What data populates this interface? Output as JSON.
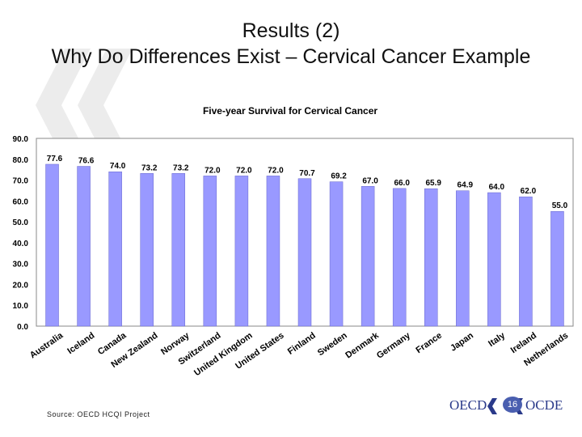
{
  "slide": {
    "title_line1": "Results (2)",
    "title_line2": "Why Do Differences Exist – Cervical Cancer Example",
    "source": "Source: OECD HCQI Project",
    "page_number": "16",
    "logo_left": "OECD",
    "logo_right": "OCDE"
  },
  "colors": {
    "bar_fill": "#9999ff",
    "bar_stroke": "#6666cc",
    "plot_border": "#888888",
    "watermark": "#ececec",
    "logo_text": "#2a3a8a",
    "page_badge": "#4a5fb0"
  },
  "icons": {
    "watermark": "oecd-chevron-watermark-icon",
    "logo_mark": "oecd-logo-mark-icon"
  },
  "chart_data": {
    "type": "bar",
    "title": "Five-year Survival for Cervical Cancer",
    "xlabel": "",
    "ylabel": "",
    "ylim": [
      0,
      90
    ],
    "yticks": [
      "0.0",
      "10.0",
      "20.0",
      "30.0",
      "40.0",
      "50.0",
      "60.0",
      "70.0",
      "80.0",
      "90.0"
    ],
    "grid": false,
    "legend": "none",
    "categories": [
      "Australia",
      "Iceland",
      "Canada",
      "New Zealand",
      "Norway",
      "Switzerland",
      "United Kingdom",
      "United States",
      "Finland",
      "Sweden",
      "Denmark",
      "Germany",
      "France",
      "Japan",
      "Italy",
      "Ireland",
      "Netherlands"
    ],
    "values": [
      77.6,
      76.6,
      74.0,
      73.2,
      73.2,
      72.0,
      72.0,
      72.0,
      70.7,
      69.2,
      67.0,
      66.0,
      65.9,
      64.9,
      64.0,
      62.0,
      55.0
    ],
    "value_labels": [
      "77.6",
      "76.6",
      "74.0",
      "73.2",
      "73.2",
      "72.0",
      "72.0",
      "72.0",
      "70.7",
      "69.2",
      "67.0",
      "66.0",
      "65.9",
      "64.9",
      "64.0",
      "62.0",
      "55.0"
    ]
  }
}
